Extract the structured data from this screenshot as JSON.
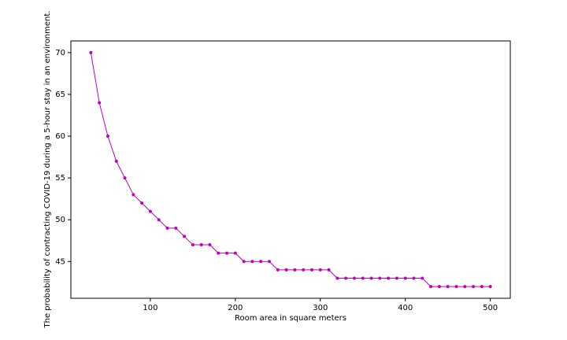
{
  "chart_data": {
    "type": "line",
    "xlabel": "Room area in square meters",
    "ylabel": "The probability of contracting COVID-19 during a 5-hour stay in an environment.",
    "x": [
      30,
      40,
      50,
      60,
      70,
      80,
      90,
      100,
      110,
      120,
      130,
      140,
      150,
      160,
      170,
      180,
      190,
      200,
      210,
      220,
      230,
      240,
      250,
      260,
      270,
      280,
      290,
      300,
      310,
      320,
      330,
      340,
      350,
      360,
      370,
      380,
      390,
      400,
      410,
      420,
      430,
      440,
      450,
      460,
      470,
      480,
      490,
      500
    ],
    "series": [
      {
        "color": "#bf00bf",
        "values": [
          70,
          64,
          60,
          57,
          55,
          53,
          52,
          51,
          50,
          49,
          49,
          48,
          47,
          47,
          47,
          46,
          46,
          46,
          45,
          45,
          45,
          45,
          44,
          44,
          44,
          44,
          44,
          44,
          44,
          43,
          43,
          43,
          43,
          43,
          43,
          43,
          43,
          43,
          43,
          43,
          42,
          42,
          42,
          42,
          42,
          42,
          42,
          42
        ]
      }
    ],
    "xlim": [
      6.5,
      523.5
    ],
    "ylim": [
      40.6,
      71.4
    ],
    "xticks": [
      100,
      200,
      300,
      400,
      500
    ],
    "yticks": [
      45,
      50,
      55,
      60,
      65,
      70
    ]
  }
}
